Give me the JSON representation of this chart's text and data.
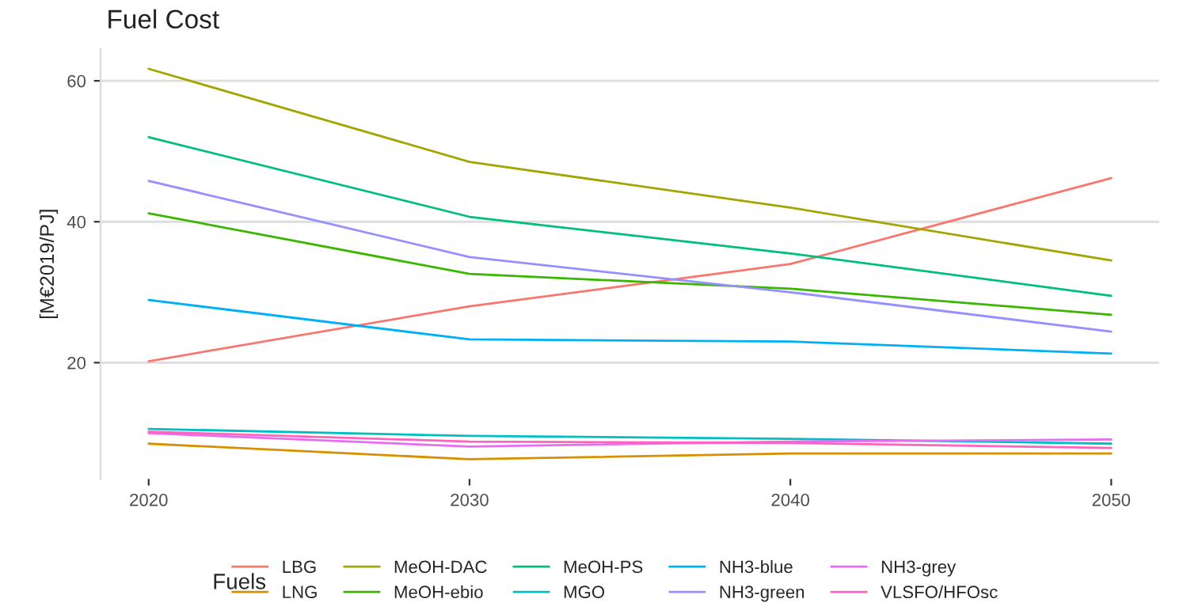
{
  "chart_data": {
    "type": "line",
    "title": "Fuel Cost",
    "ylabel": "[M€2019/PJ]",
    "legend_title": "Fuels",
    "x": [
      2020,
      2030,
      2040,
      2050
    ],
    "xlim": [
      2018.5,
      2051.5
    ],
    "xticks": [
      2020,
      2030,
      2040,
      2050
    ],
    "ylim": [
      3.5,
      64.5
    ],
    "yticks": [
      20,
      40,
      60
    ],
    "grid": "y",
    "legend": "bottom",
    "line_style": "solid",
    "marker": "none",
    "series": [
      {
        "name": "LBG",
        "color": "#F8766D",
        "values": [
          20.2,
          28.0,
          34.0,
          46.2
        ]
      },
      {
        "name": "LNG",
        "color": "#D89000",
        "values": [
          8.5,
          6.3,
          7.1,
          7.1
        ]
      },
      {
        "name": "MeOH-DAC",
        "color": "#A3A500",
        "values": [
          61.7,
          48.5,
          42.0,
          34.5
        ]
      },
      {
        "name": "MeOH-ebio",
        "color": "#39B600",
        "values": [
          41.2,
          32.6,
          30.5,
          26.8
        ]
      },
      {
        "name": "MeOH-PS",
        "color": "#00BF7D",
        "values": [
          52.0,
          40.7,
          35.5,
          29.5
        ]
      },
      {
        "name": "MGO",
        "color": "#00BFC4",
        "values": [
          10.6,
          9.6,
          9.2,
          8.5
        ]
      },
      {
        "name": "NH3-blue",
        "color": "#00B0F6",
        "values": [
          28.9,
          23.3,
          23.0,
          21.3
        ]
      },
      {
        "name": "NH3-green",
        "color": "#9590FF",
        "values": [
          45.8,
          35.0,
          30.0,
          24.4
        ]
      },
      {
        "name": "NH3-grey",
        "color": "#E76BF3",
        "values": [
          10.0,
          8.1,
          8.8,
          9.1
        ]
      },
      {
        "name": "VLSFO/HFOsc",
        "color": "#FF62BC",
        "values": [
          10.2,
          8.8,
          8.6,
          7.9
        ]
      }
    ]
  }
}
